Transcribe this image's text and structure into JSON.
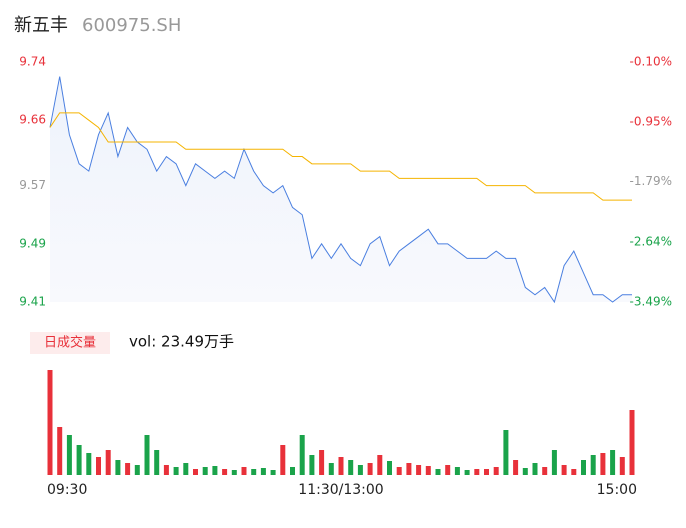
{
  "header": {
    "title": "新五丰",
    "code": "600975.SH"
  },
  "chart_data": {
    "type": "line",
    "x": [
      0,
      1,
      2,
      3,
      4,
      5,
      6,
      7,
      8,
      9,
      10,
      11,
      12,
      13,
      14,
      15,
      16,
      17,
      18,
      19,
      20,
      21,
      22,
      23,
      24,
      25,
      26,
      27,
      28,
      29,
      30,
      31,
      32,
      33,
      34,
      35,
      36,
      37,
      38,
      39,
      40,
      41,
      42,
      43,
      44,
      45,
      46,
      47,
      48,
      49,
      50,
      51,
      52,
      53,
      54,
      55,
      56,
      57,
      58,
      59,
      60
    ],
    "xlim": [
      0,
      60
    ],
    "xticks": [
      {
        "value": 0,
        "label": "09:30"
      },
      {
        "value": 30,
        "label": "11:30/13:00"
      },
      {
        "value": 60,
        "label": "15:00"
      }
    ],
    "ylim": [
      9.41,
      9.74
    ],
    "yticks": [
      9.74,
      9.66,
      9.57,
      9.49,
      9.41
    ],
    "y2lim": [
      -3.49,
      -0.1
    ],
    "y2ticks": [
      {
        "value": -0.1,
        "label": "-0.10%"
      },
      {
        "value": -0.95,
        "label": "-0.95%"
      },
      {
        "value": -1.79,
        "label": "-1.79%"
      },
      {
        "value": -2.64,
        "label": "-2.64%"
      },
      {
        "value": -3.49,
        "label": "-3.49%"
      }
    ],
    "tick_colors": [
      "#e8313a",
      "#e8313a",
      "#999999",
      "#1aa34a",
      "#1aa34a"
    ],
    "series": [
      {
        "name": "price",
        "color": "#4a7fe0",
        "values": [
          9.65,
          9.72,
          9.64,
          9.6,
          9.59,
          9.64,
          9.67,
          9.61,
          9.65,
          9.63,
          9.62,
          9.59,
          9.61,
          9.6,
          9.57,
          9.6,
          9.59,
          9.58,
          9.59,
          9.58,
          9.62,
          9.59,
          9.57,
          9.56,
          9.57,
          9.54,
          9.53,
          9.47,
          9.49,
          9.47,
          9.49,
          9.47,
          9.46,
          9.49,
          9.5,
          9.46,
          9.48,
          9.49,
          9.5,
          9.51,
          9.49,
          9.49,
          9.48,
          9.47,
          9.47,
          9.47,
          9.48,
          9.47,
          9.47,
          9.43,
          9.42,
          9.43,
          9.41,
          9.46,
          9.48,
          9.45,
          9.42,
          9.42,
          9.41,
          9.42,
          9.42
        ]
      },
      {
        "name": "average",
        "color": "#f5b400",
        "values": [
          9.65,
          9.67,
          9.67,
          9.67,
          9.66,
          9.65,
          9.63,
          9.63,
          9.63,
          9.63,
          9.63,
          9.63,
          9.63,
          9.63,
          9.62,
          9.62,
          9.62,
          9.62,
          9.62,
          9.62,
          9.62,
          9.62,
          9.62,
          9.62,
          9.62,
          9.61,
          9.61,
          9.6,
          9.6,
          9.6,
          9.6,
          9.6,
          9.59,
          9.59,
          9.59,
          9.59,
          9.58,
          9.58,
          9.58,
          9.58,
          9.58,
          9.58,
          9.58,
          9.58,
          9.58,
          9.57,
          9.57,
          9.57,
          9.57,
          9.57,
          9.56,
          9.56,
          9.56,
          9.56,
          9.56,
          9.56,
          9.56,
          9.55,
          9.55,
          9.55,
          9.55
        ]
      }
    ],
    "volume": {
      "label": "日成交量",
      "current": "vol: 23.49万手",
      "up_color": "#e8313a",
      "down_color": "#1aa34a",
      "values": [
        105,
        48,
        40,
        30,
        22,
        18,
        25,
        15,
        12,
        10,
        40,
        25,
        10,
        8,
        12,
        6,
        8,
        9,
        6,
        5,
        8,
        6,
        7,
        5,
        30,
        8,
        40,
        20,
        25,
        12,
        18,
        15,
        10,
        12,
        20,
        14,
        8,
        12,
        10,
        9,
        6,
        10,
        8,
        5,
        6,
        6,
        8,
        45,
        15,
        7,
        12,
        8,
        25,
        10,
        6,
        15,
        20,
        22,
        25,
        18,
        65
      ]
    }
  }
}
